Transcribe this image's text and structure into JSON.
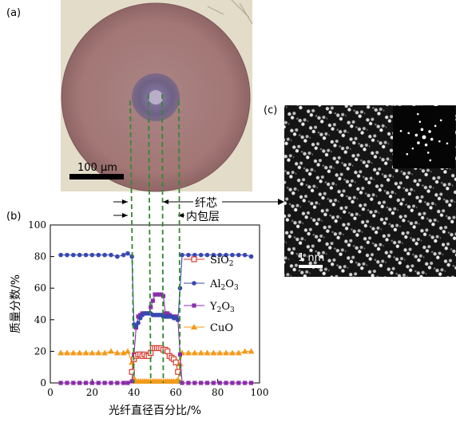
{
  "panel_labels": {
    "a": "(a)",
    "b": "(b)",
    "c": "(c)"
  },
  "scale_bar_a": "100 µm",
  "scale_bar_c": "1 nm",
  "annotations": {
    "core": "纤芯",
    "inner_cladding": "内包层"
  },
  "colors": {
    "SiO2": "#d83a2e",
    "Al2O3": "#3848b0",
    "Y2O3": "#8a2ea8",
    "CuO": "#f39a1a",
    "guide": "#2f8a2f"
  },
  "chart_data": {
    "type": "line",
    "xlabel": "光纤直径百分比/%",
    "ylabel": "质量分数/%",
    "xlim": [
      0,
      100
    ],
    "ylim": [
      0,
      100
    ],
    "xticks": [
      0,
      20,
      40,
      60,
      80,
      100
    ],
    "yticks": [
      0,
      20,
      40,
      60,
      80,
      100
    ],
    "legend_position": "right",
    "series": [
      {
        "name": "SiO2",
        "label_main": "SiO",
        "label_sub": "2",
        "marker": "open-square",
        "color": "#d83a2e",
        "x": [
          39,
          40,
          41,
          42,
          43,
          44,
          45,
          46,
          47,
          48,
          49,
          50,
          51,
          52,
          53,
          54,
          55,
          56,
          57,
          58,
          59,
          60,
          61
        ],
        "y": [
          7,
          15,
          17,
          18,
          18,
          17,
          18,
          17,
          17,
          19,
          22,
          22,
          22,
          22,
          22,
          21,
          21,
          20,
          17,
          16,
          15,
          13,
          7
        ]
      },
      {
        "name": "Al2O3",
        "label_main": "Al",
        "label_sub1": "2",
        "label_mid": "O",
        "label_sub2": "3",
        "marker": "circle",
        "color": "#3848b0",
        "x": [
          5,
          8,
          11,
          14,
          17,
          20,
          23,
          26,
          29,
          32,
          35,
          37,
          39,
          40,
          41,
          42,
          43,
          44,
          45,
          46,
          47,
          48,
          49,
          50,
          51,
          52,
          53,
          54,
          55,
          56,
          57,
          58,
          59,
          60,
          61,
          62,
          63,
          66,
          69,
          72,
          75,
          78,
          81,
          84,
          87,
          90,
          93,
          96
        ],
        "y": [
          81,
          81,
          81,
          81,
          81,
          81,
          81,
          81,
          81,
          80,
          81,
          82,
          80,
          37,
          36,
          38,
          41,
          43,
          44,
          44,
          44,
          44,
          43,
          43,
          43,
          43,
          43,
          42,
          42,
          42,
          42,
          42,
          41,
          41,
          40,
          60,
          81,
          81,
          81,
          81,
          81,
          81,
          81,
          81,
          81,
          81,
          81,
          80
        ]
      },
      {
        "name": "Y2O3",
        "label_main": "Y",
        "label_sub1": "2",
        "label_mid": "O",
        "label_sub2": "3",
        "marker": "small-square",
        "color": "#8a2ea8",
        "x": [
          5,
          8,
          11,
          14,
          17,
          20,
          23,
          26,
          29,
          32,
          35,
          37,
          39,
          40,
          41,
          42,
          43,
          44,
          45,
          46,
          47,
          48,
          49,
          50,
          51,
          52,
          53,
          54,
          55,
          56,
          57,
          58,
          59,
          60,
          61,
          62,
          63,
          66,
          69,
          72,
          75,
          78,
          81,
          84,
          87,
          90,
          93,
          96
        ],
        "y": [
          0,
          0,
          0,
          0,
          0,
          0,
          0,
          0,
          0,
          0,
          0,
          0,
          1,
          18,
          35,
          42,
          43,
          44,
          44,
          44,
          44,
          48,
          52,
          56,
          56,
          56,
          56,
          55,
          44,
          44,
          43,
          42,
          42,
          42,
          40,
          18,
          0,
          0,
          0,
          0,
          0,
          0,
          0,
          0,
          0,
          0,
          0,
          0
        ]
      },
      {
        "name": "CuO",
        "marker": "triangle",
        "color": "#f39a1a",
        "x": [
          5,
          8,
          11,
          14,
          17,
          20,
          23,
          26,
          29,
          32,
          35,
          37,
          39,
          40,
          41,
          42,
          43,
          44,
          45,
          46,
          47,
          48,
          49,
          50,
          51,
          52,
          53,
          54,
          55,
          56,
          57,
          58,
          59,
          60,
          61,
          62,
          63,
          66,
          69,
          72,
          75,
          78,
          81,
          84,
          87,
          90,
          93,
          96
        ],
        "y": [
          19,
          19,
          19,
          19,
          19,
          19,
          19,
          19,
          20,
          19,
          19,
          20,
          13,
          3,
          1,
          1,
          1,
          1,
          1,
          1,
          1,
          1,
          1,
          1,
          1,
          1,
          1,
          1,
          1,
          1,
          1,
          1,
          1,
          1,
          2,
          12,
          19,
          19,
          19,
          19,
          19,
          19,
          19,
          19,
          19,
          19,
          20,
          20
        ]
      }
    ]
  }
}
